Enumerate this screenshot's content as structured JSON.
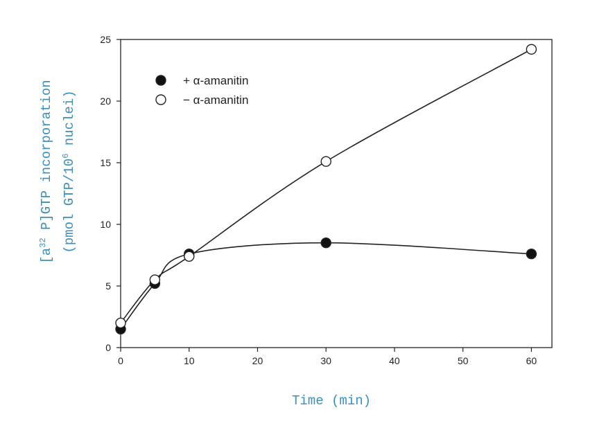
{
  "chart_data": {
    "type": "line",
    "title": "",
    "xlabel": "Time (min)",
    "ylabel_line1": "[a32 P]GTP incorporation",
    "ylabel_line2": "(pmol GTP/106 nuclei)",
    "ylabel_parts": {
      "line1_pre": "[a",
      "line1_sup": "32",
      "line1_post": " P]GTP incorporation",
      "line2_pre": "(pmol GTP/10",
      "line2_sup": "6",
      "line2_post": "  nuclei)"
    },
    "xlim": [
      0,
      63
    ],
    "ylim": [
      0,
      25
    ],
    "xticks": [
      0,
      10,
      20,
      30,
      40,
      50,
      60
    ],
    "yticks": [
      0,
      5,
      10,
      15,
      20,
      25
    ],
    "grid": false,
    "legend_position": "top-left",
    "series": [
      {
        "name": "+ α-amanitin",
        "marker": "filled-circle",
        "x": [
          0,
          5,
          10,
          30,
          60
        ],
        "values": [
          1.5,
          5.2,
          7.6,
          8.5,
          7.6
        ]
      },
      {
        "name": "− α-amanitin",
        "marker": "open-circle",
        "x": [
          0,
          5,
          10,
          30,
          60
        ],
        "values": [
          2.0,
          5.5,
          7.4,
          15.1,
          24.2
        ]
      }
    ]
  },
  "colors": {
    "axis": "#222222",
    "label_accent": "#3a8fbf",
    "marker_fill": "#111111",
    "marker_open_fill": "#ffffff"
  }
}
